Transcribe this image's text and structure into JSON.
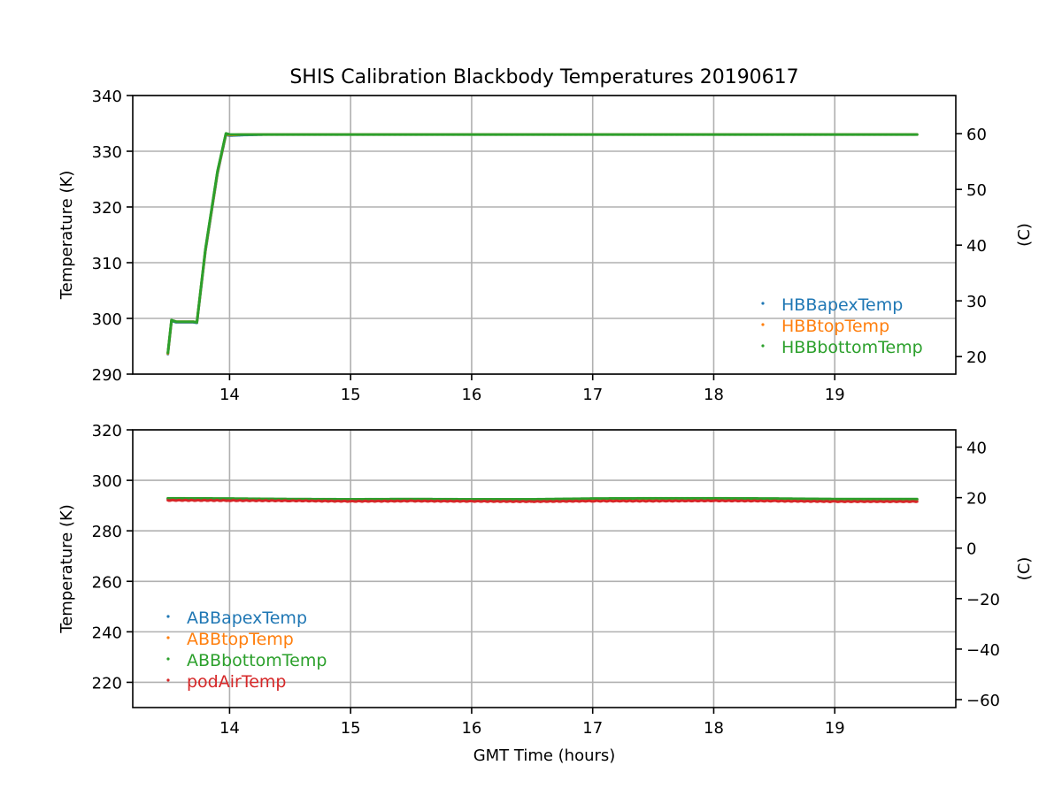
{
  "chart_data": [
    {
      "type": "scatter",
      "title": "SHIS Calibration Blackbody Temperatures 20190617",
      "xlabel": "",
      "ylabel": "Temperature (K)",
      "ylabel_right": "(C)",
      "xlim": [
        13.2,
        20.0
      ],
      "ylim": [
        290,
        340
      ],
      "xticks": [
        14,
        15,
        16,
        17,
        18,
        19
      ],
      "yticks": [
        290,
        300,
        310,
        320,
        330,
        340
      ],
      "yticks_right": [
        20,
        30,
        40,
        50,
        60
      ],
      "grid": true,
      "legend_position": "lower-right",
      "series": [
        {
          "name": "HBBapexTemp",
          "color": "#1f77b4",
          "x": [
            13.49,
            13.52,
            13.53,
            13.56,
            13.7,
            13.73,
            13.8,
            13.9,
            13.97,
            14.0,
            14.1,
            14.3,
            15.0,
            16.0,
            17.0,
            18.0,
            19.0,
            19.68
          ],
          "y": [
            293.6,
            299.5,
            299.5,
            299.3,
            299.3,
            299.2,
            312.0,
            326.0,
            333.0,
            332.8,
            332.9,
            333.0,
            333.0,
            333.0,
            333.0,
            333.0,
            333.0,
            333.0
          ]
        },
        {
          "name": "HBBtopTemp",
          "color": "#ff7f0e",
          "x": [
            13.49,
            13.52,
            13.53,
            13.56,
            13.7,
            13.73,
            13.8,
            13.9,
            13.97,
            14.0,
            14.1,
            14.3,
            15.0,
            16.0,
            17.0,
            18.0,
            19.0,
            19.68
          ],
          "y": [
            293.7,
            299.6,
            299.6,
            299.4,
            299.4,
            299.3,
            312.2,
            326.2,
            333.1,
            332.9,
            333.0,
            333.0,
            333.0,
            333.0,
            333.0,
            333.0,
            333.0,
            333.0
          ]
        },
        {
          "name": "HBBbottomTemp",
          "color": "#2ca02c",
          "x": [
            13.49,
            13.52,
            13.53,
            13.56,
            13.7,
            13.73,
            13.8,
            13.9,
            13.97,
            14.0,
            14.1,
            14.3,
            15.0,
            16.0,
            17.0,
            18.0,
            19.0,
            19.68
          ],
          "y": [
            293.8,
            299.7,
            299.6,
            299.4,
            299.4,
            299.3,
            312.4,
            326.4,
            333.2,
            333.0,
            333.0,
            333.0,
            333.0,
            333.0,
            333.0,
            333.0,
            333.0,
            333.0
          ]
        }
      ]
    },
    {
      "type": "scatter",
      "title": "",
      "xlabel": "GMT Time (hours)",
      "ylabel": "Temperature (K)",
      "ylabel_right": "(C)",
      "xlim": [
        13.2,
        20.0
      ],
      "ylim": [
        210,
        320
      ],
      "xticks": [
        14,
        15,
        16,
        17,
        18,
        19
      ],
      "yticks": [
        220,
        240,
        260,
        280,
        300,
        320
      ],
      "yticks_right": [
        -60,
        -40,
        -20,
        0,
        20,
        40
      ],
      "grid": true,
      "legend_position": "lower-left",
      "series": [
        {
          "name": "ABBapexTemp",
          "color": "#1f77b4",
          "x": [
            13.49,
            14.0,
            14.5,
            15.0,
            15.5,
            16.0,
            16.5,
            17.0,
            17.5,
            18.0,
            18.5,
            19.0,
            19.68
          ],
          "y": [
            292.6,
            292.5,
            292.3,
            292.2,
            292.3,
            292.2,
            292.2,
            292.5,
            292.6,
            292.6,
            292.5,
            292.3,
            292.3
          ]
        },
        {
          "name": "ABBtopTemp",
          "color": "#ff7f0e",
          "x": [
            13.49,
            14.0,
            14.5,
            15.0,
            15.5,
            16.0,
            16.5,
            17.0,
            17.5,
            18.0,
            18.5,
            19.0,
            19.68
          ],
          "y": [
            292.7,
            292.6,
            292.4,
            292.3,
            292.4,
            292.3,
            292.3,
            292.6,
            292.7,
            292.7,
            292.6,
            292.4,
            292.4
          ]
        },
        {
          "name": "ABBbottomTemp",
          "color": "#2ca02c",
          "x": [
            13.49,
            14.0,
            14.5,
            15.0,
            15.5,
            16.0,
            16.5,
            17.0,
            17.5,
            18.0,
            18.5,
            19.0,
            19.68
          ],
          "y": [
            292.9,
            292.8,
            292.6,
            292.5,
            292.6,
            292.5,
            292.5,
            292.8,
            292.9,
            292.9,
            292.8,
            292.6,
            292.6
          ]
        },
        {
          "name": "podAirTemp",
          "color": "#d62728",
          "x": [
            13.49,
            14.0,
            14.5,
            15.0,
            15.5,
            16.0,
            16.5,
            17.0,
            17.5,
            18.0,
            18.5,
            19.0,
            19.68
          ],
          "y": [
            292.1,
            292.0,
            291.9,
            291.7,
            291.8,
            291.7,
            291.6,
            291.8,
            291.8,
            291.9,
            291.8,
            291.6,
            291.6
          ]
        }
      ]
    }
  ]
}
